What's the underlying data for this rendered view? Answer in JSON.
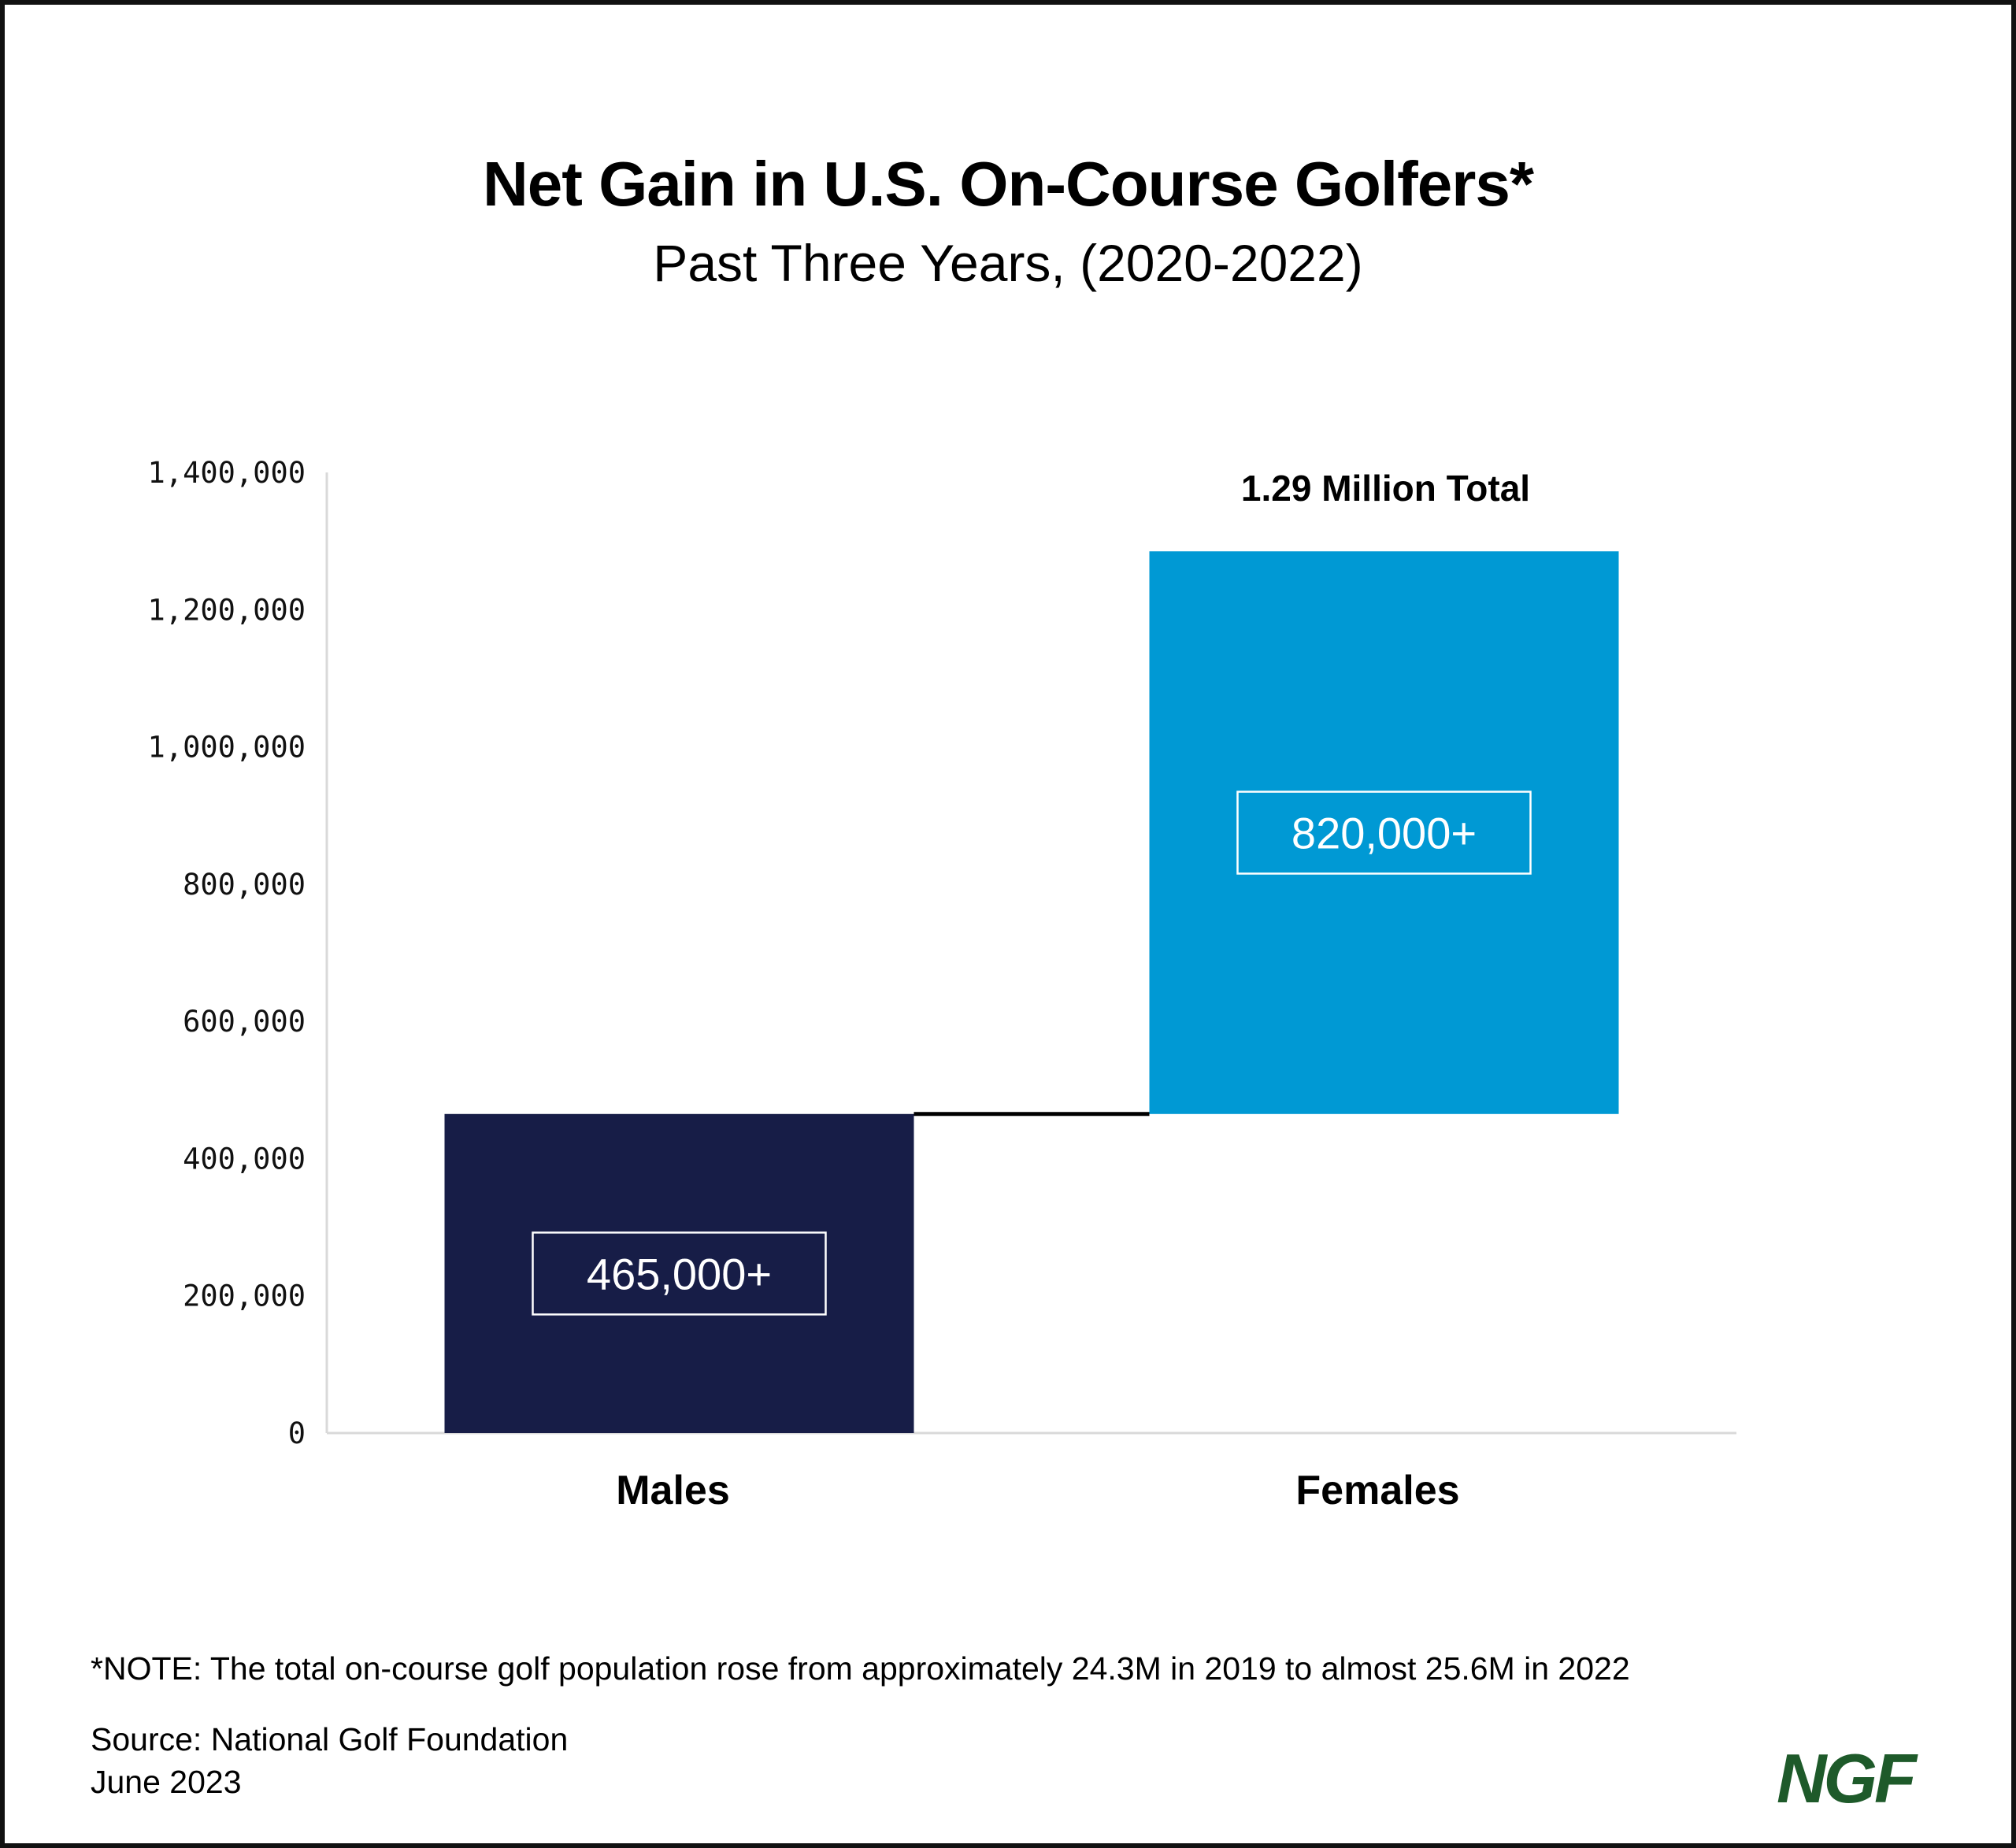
{
  "title": "Net Gain in U.S. On-Course Golfers*",
  "subtitle": "Past Three Years, (2020-2022)",
  "note": "*NOTE: The total on-course golf population rose from approximately 24.3M in 2019 to almost 25.6M in 2022",
  "source": "Source: National Golf Foundation",
  "date": "June 2023",
  "logo": "NGF",
  "colors": {
    "males": "#171d47",
    "females": "#0099d4",
    "axis": "#d9d9d9",
    "connector": "#000000",
    "logo": "#1e5a2a"
  },
  "chart_data": {
    "type": "bar",
    "subtype": "waterfall",
    "categories": [
      "Males",
      "Females"
    ],
    "values": [
      465000,
      820000
    ],
    "bases": [
      0,
      465000
    ],
    "data_labels": [
      "465,000+",
      "820,000+"
    ],
    "total_label": "1.29 Million Total",
    "title": "Net Gain in U.S. On-Course Golfers*",
    "subtitle": "Past Three Years, (2020-2022)",
    "xlabel": "",
    "ylabel": "",
    "ylim": [
      0,
      1400000
    ],
    "yticks": [
      0,
      200000,
      400000,
      600000,
      800000,
      1000000,
      1200000,
      1400000
    ],
    "ytick_labels": [
      "0",
      "200,000",
      "400,000",
      "600,000",
      "800,000",
      "1,000,000",
      "1,200,000",
      "1,400,000"
    ],
    "grid": false,
    "legend": "none"
  }
}
